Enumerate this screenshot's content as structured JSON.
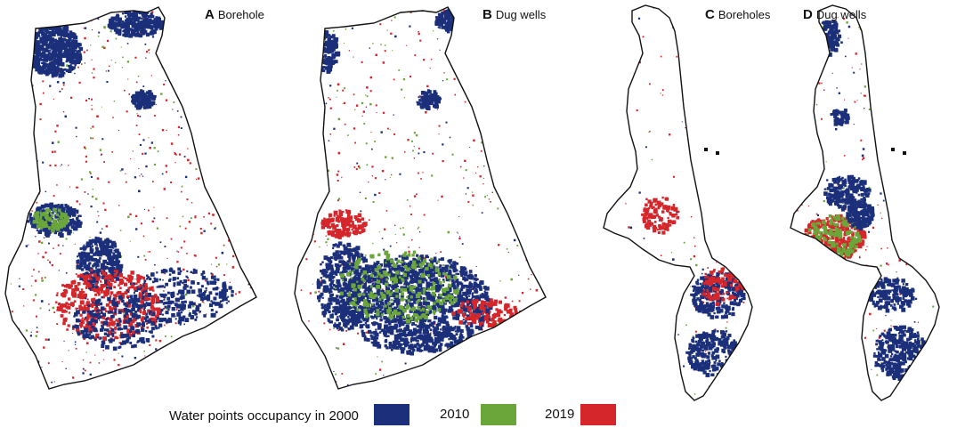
{
  "panels": [
    {
      "letter": "A",
      "title": "Borehole"
    },
    {
      "letter": "B",
      "title": "Dug wells"
    },
    {
      "letter": "C",
      "title": "Boreholes"
    },
    {
      "letter": "D",
      "title": "Dug wells"
    }
  ],
  "legend": {
    "heading": "Water points occupancy in 2000",
    "items": [
      {
        "label": "",
        "color": "#1b2f7a"
      },
      {
        "label": "2010",
        "color": "#6aa63a"
      },
      {
        "label": "2019",
        "color": "#d4262b"
      }
    ]
  },
  "colors": {
    "y2000": "#1b2f7a",
    "y2010": "#6aa63a",
    "y2019": "#d4262b",
    "outline": "#111111"
  }
}
